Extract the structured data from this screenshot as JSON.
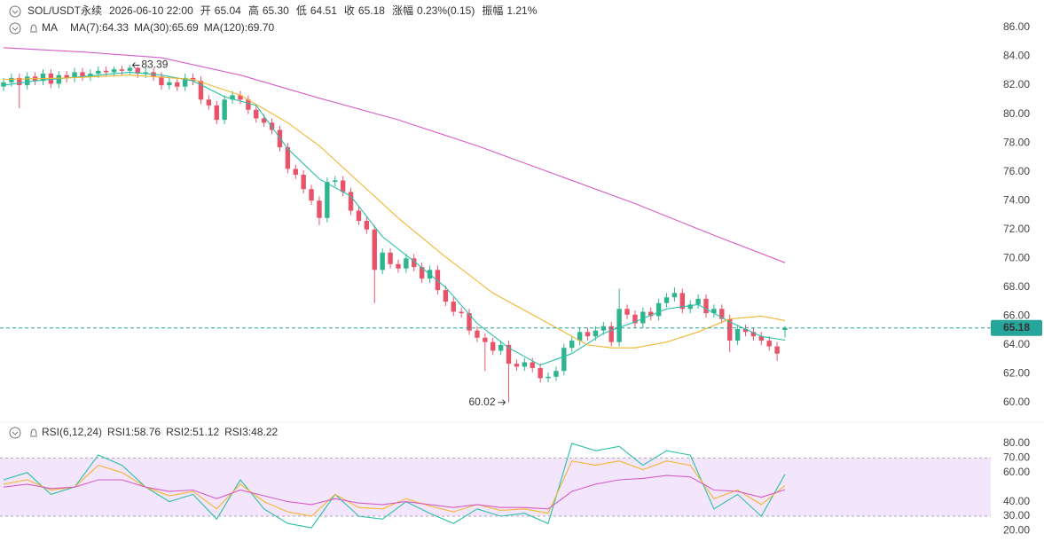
{
  "header": {
    "symbol": "SOL/USDT永续",
    "time": "2026-06-10 22:00",
    "open_label": "开",
    "open": "65.04",
    "high_label": "高",
    "high": "65.30",
    "low_label": "低",
    "low": "64.51",
    "close_label": "收",
    "close": "65.18",
    "change_label": "涨幅",
    "change": "0.23%(0.15)",
    "amplitude_label": "振幅",
    "amplitude": "1.21%"
  },
  "chart_data": [
    {
      "type": "candlestick",
      "indicator_label": "MA",
      "up_color": "#2fb58e",
      "down_color": "#e9536a",
      "xlim": [
        0,
        99
      ],
      "ylim": [
        59,
        87
      ],
      "yticks": [
        {
          "value": 86,
          "label": "86.00"
        },
        {
          "value": 84,
          "label": "84.00"
        },
        {
          "value": 82,
          "label": "82.00"
        },
        {
          "value": 80,
          "label": "80.00"
        },
        {
          "value": 78,
          "label": "78.00"
        },
        {
          "value": 76,
          "label": "76.00"
        },
        {
          "value": 74,
          "label": "74.00"
        },
        {
          "value": 72,
          "label": "72.00"
        },
        {
          "value": 70,
          "label": "70.00"
        },
        {
          "value": 68,
          "label": "68.00"
        },
        {
          "value": 66,
          "label": "66.00"
        },
        {
          "value": 64,
          "label": "64.00"
        },
        {
          "value": 62,
          "label": "62.00"
        },
        {
          "value": 60,
          "label": "60.00"
        }
      ],
      "opens": [
        81.9,
        82.2,
        82.5,
        82.0,
        82.6,
        82.3,
        82.8,
        82.1,
        82.7,
        82.5,
        82.9,
        82.6,
        82.8,
        83.0,
        82.9,
        83.1,
        83.0,
        83.2,
        82.8,
        82.9,
        82.6,
        82.0,
        82.2,
        81.9,
        82.5,
        82.3,
        81.0,
        80.6,
        79.6,
        81.0,
        81.3,
        81.0,
        80.3,
        79.7,
        79.4,
        78.9,
        77.7,
        76.2,
        75.8,
        74.8,
        74.0,
        72.8,
        75.3,
        75.4,
        74.6,
        73.3,
        72.6,
        72.0,
        69.2,
        70.4,
        69.6,
        69.3,
        70.0,
        69.4,
        68.6,
        69.2,
        67.8,
        67.0,
        66.3,
        66.2,
        65.0,
        64.5,
        64.2,
        63.6,
        64.0,
        62.7,
        62.5,
        62.8,
        62.4,
        61.7,
        61.8,
        62.2,
        63.8,
        64.3,
        64.9,
        64.6,
        65.0,
        65.3,
        64.2,
        66.5,
        66.1,
        65.5,
        66.3,
        66.0,
        66.9,
        67.3,
        67.6,
        66.5,
        66.8,
        67.2,
        66.2,
        66.5,
        65.8,
        64.3,
        65.1,
        64.9,
        64.6,
        64.3,
        63.9,
        65.04
      ],
      "highs": [
        82.5,
        82.8,
        82.8,
        82.9,
        82.9,
        83.1,
        83.1,
        83.0,
        83.0,
        83.2,
        83.2,
        83.1,
        83.3,
        83.3,
        83.3,
        83.35,
        83.39,
        83.3,
        83.2,
        83.2,
        82.9,
        82.5,
        82.5,
        82.8,
        82.8,
        82.6,
        81.3,
        80.9,
        81.3,
        81.6,
        81.6,
        81.3,
        80.6,
        80.0,
        79.7,
        79.2,
        78.0,
        76.5,
        76.1,
        75.1,
        74.3,
        75.6,
        75.7,
        75.7,
        74.9,
        73.6,
        72.9,
        72.3,
        70.7,
        70.7,
        69.9,
        70.3,
        70.3,
        69.7,
        69.5,
        69.5,
        68.1,
        67.3,
        66.6,
        66.5,
        65.3,
        64.8,
        64.5,
        64.3,
        64.3,
        63.0,
        63.1,
        63.1,
        62.7,
        62.1,
        62.5,
        64.1,
        64.6,
        65.2,
        65.2,
        65.3,
        65.6,
        65.6,
        67.9,
        66.8,
        66.4,
        66.6,
        66.6,
        67.2,
        67.6,
        68.0,
        67.9,
        67.1,
        67.5,
        67.5,
        66.8,
        66.8,
        66.1,
        65.4,
        65.4,
        65.2,
        64.9,
        64.6,
        64.2,
        65.3
      ],
      "lows": [
        81.6,
        81.9,
        80.4,
        81.7,
        82.0,
        82.0,
        81.8,
        81.8,
        82.2,
        82.2,
        82.3,
        82.3,
        82.5,
        82.6,
        82.6,
        82.7,
        82.7,
        82.5,
        82.5,
        82.3,
        81.7,
        81.7,
        81.6,
        81.6,
        82.0,
        80.7,
        80.3,
        79.3,
        79.3,
        80.7,
        80.7,
        80.0,
        79.4,
        79.1,
        78.6,
        77.4,
        75.9,
        75.5,
        74.5,
        73.7,
        72.3,
        72.5,
        75.0,
        74.3,
        73.0,
        72.3,
        71.7,
        66.9,
        68.9,
        69.3,
        69.0,
        69.0,
        69.1,
        68.3,
        68.3,
        67.5,
        66.7,
        66.0,
        65.9,
        64.7,
        64.2,
        62.2,
        63.3,
        63.3,
        60.02,
        62.2,
        62.2,
        62.1,
        61.4,
        61.4,
        61.5,
        61.9,
        63.5,
        64.0,
        64.3,
        64.3,
        64.7,
        63.9,
        63.9,
        65.8,
        65.2,
        65.2,
        65.7,
        65.7,
        66.6,
        67.0,
        66.2,
        66.2,
        66.5,
        65.9,
        65.9,
        65.5,
        63.5,
        64.0,
        64.6,
        64.3,
        64.0,
        63.6,
        62.9,
        64.51
      ],
      "closes": [
        82.2,
        82.5,
        82.0,
        82.6,
        82.3,
        82.8,
        82.1,
        82.7,
        82.5,
        82.9,
        82.6,
        82.8,
        83.0,
        82.9,
        83.1,
        83.0,
        83.2,
        82.8,
        82.9,
        82.6,
        82.0,
        82.2,
        81.9,
        82.5,
        82.3,
        81.0,
        80.6,
        79.6,
        81.0,
        81.3,
        81.0,
        80.3,
        79.7,
        79.4,
        78.9,
        77.7,
        76.2,
        75.8,
        74.8,
        74.0,
        72.8,
        75.3,
        75.4,
        74.6,
        73.3,
        72.6,
        72.0,
        69.2,
        70.4,
        69.6,
        69.3,
        70.0,
        69.4,
        68.6,
        69.2,
        67.8,
        67.0,
        66.3,
        66.2,
        65.0,
        64.5,
        64.2,
        63.6,
        64.0,
        62.7,
        62.5,
        62.8,
        62.4,
        61.7,
        61.8,
        62.2,
        63.8,
        64.3,
        64.9,
        64.6,
        65.0,
        65.3,
        64.2,
        66.5,
        66.1,
        65.5,
        66.3,
        66.0,
        66.9,
        67.3,
        67.6,
        66.5,
        66.8,
        67.2,
        66.2,
        66.5,
        65.8,
        64.3,
        65.1,
        64.9,
        64.6,
        64.3,
        63.9,
        63.4,
        65.18
      ],
      "series": [
        {
          "name": "MA(7):64.33",
          "color": "#2bbfa9",
          "x": [
            0,
            4,
            8,
            12,
            16,
            20,
            24,
            28,
            32,
            36,
            40,
            44,
            48,
            52,
            56,
            60,
            64,
            68,
            72,
            76,
            80,
            84,
            88,
            92,
            96,
            99
          ],
          "values": [
            82.0,
            82.3,
            82.5,
            82.7,
            82.9,
            82.7,
            82.3,
            81.2,
            80.6,
            77.6,
            75.5,
            74.3,
            71.5,
            69.8,
            68.0,
            65.5,
            63.8,
            62.6,
            63.4,
            64.8,
            65.6,
            66.5,
            66.8,
            65.6,
            64.6,
            64.33
          ]
        },
        {
          "name": "MA(30):65.69",
          "color": "#f2b631",
          "x": [
            0,
            8,
            16,
            24,
            30,
            36,
            40,
            45,
            50,
            56,
            62,
            66,
            70,
            74,
            77,
            80,
            84,
            88,
            92,
            96,
            99
          ],
          "values": [
            82.4,
            82.5,
            82.7,
            82.4,
            81.3,
            79.4,
            77.8,
            75.3,
            72.8,
            70.1,
            67.6,
            66.4,
            65.2,
            64.0,
            63.8,
            63.8,
            64.2,
            64.9,
            65.8,
            66.0,
            65.69
          ]
        },
        {
          "name": "MA(120):69.70",
          "color": "#d65ec6",
          "x": [
            0,
            10,
            20,
            30,
            40,
            50,
            60,
            70,
            80,
            90,
            99
          ],
          "values": [
            84.6,
            84.3,
            83.9,
            82.7,
            81.1,
            79.6,
            77.8,
            75.8,
            73.8,
            71.6,
            69.7
          ]
        }
      ],
      "high_marker": {
        "x": 16,
        "value": 83.39
      },
      "low_marker": {
        "x": 64,
        "value": 60.02
      },
      "last_price": {
        "value": 65.18,
        "color": "#26a69a"
      }
    },
    {
      "type": "line",
      "title": "RSI(6,12,24)",
      "xlim": [
        0,
        99
      ],
      "ylim": [
        15,
        85
      ],
      "yticks": [
        {
          "value": 80,
          "label": "80.00"
        },
        {
          "value": 70,
          "label": "70.00"
        },
        {
          "value": 60,
          "label": "60.00"
        },
        {
          "value": 40,
          "label": "40.00"
        },
        {
          "value": 30,
          "label": "30.00"
        },
        {
          "value": 20,
          "label": "20.00"
        }
      ],
      "band": [
        30,
        70
      ],
      "band_color": "#f3e5fb",
      "series": [
        {
          "name": "RSI1:58.76",
          "color": "#2bbfa9",
          "x": [
            0,
            3,
            6,
            9,
            12,
            15,
            18,
            21,
            24,
            27,
            30,
            33,
            36,
            39,
            42,
            45,
            48,
            51,
            54,
            57,
            60,
            63,
            66,
            69,
            72,
            75,
            78,
            81,
            84,
            87,
            90,
            93,
            96,
            99
          ],
          "values": [
            55,
            60,
            45,
            50,
            72,
            65,
            50,
            40,
            45,
            28,
            55,
            35,
            25,
            22,
            45,
            30,
            28,
            40,
            32,
            25,
            35,
            30,
            32,
            25,
            80,
            75,
            78,
            65,
            75,
            72,
            35,
            45,
            30,
            58.76
          ]
        },
        {
          "name": "RSI2:51.12",
          "color": "#f2b631",
          "x": [
            0,
            3,
            6,
            9,
            12,
            15,
            18,
            21,
            24,
            27,
            30,
            33,
            36,
            39,
            42,
            45,
            48,
            51,
            54,
            57,
            60,
            63,
            66,
            69,
            72,
            75,
            78,
            81,
            84,
            87,
            90,
            93,
            96,
            99
          ],
          "values": [
            52,
            55,
            48,
            50,
            65,
            60,
            50,
            44,
            47,
            35,
            52,
            40,
            33,
            30,
            45,
            36,
            35,
            42,
            37,
            33,
            38,
            34,
            35,
            32,
            68,
            65,
            68,
            62,
            68,
            65,
            42,
            48,
            38,
            51.12
          ]
        },
        {
          "name": "RSI3:48.22",
          "color": "#d65ec6",
          "x": [
            0,
            3,
            6,
            9,
            12,
            15,
            18,
            21,
            24,
            27,
            30,
            33,
            36,
            39,
            42,
            45,
            48,
            51,
            54,
            57,
            60,
            63,
            66,
            69,
            72,
            75,
            78,
            81,
            84,
            87,
            90,
            93,
            96,
            99
          ],
          "values": [
            50,
            52,
            49,
            50,
            55,
            55,
            50,
            47,
            48,
            42,
            48,
            44,
            40,
            38,
            42,
            39,
            38,
            40,
            38,
            36,
            38,
            36,
            36,
            35,
            47,
            52,
            55,
            56,
            58,
            57,
            48,
            47,
            43,
            48.22
          ]
        }
      ]
    }
  ]
}
